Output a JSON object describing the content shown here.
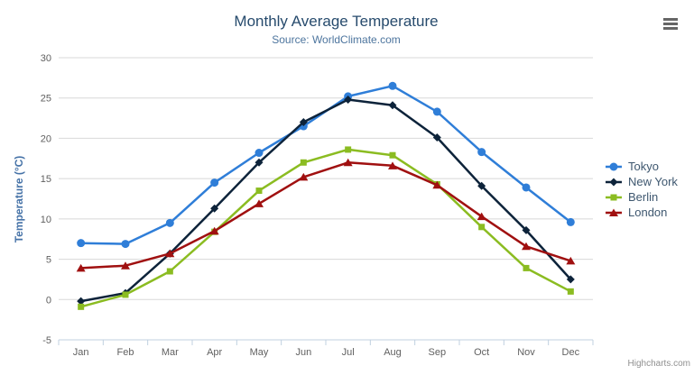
{
  "chart_data": {
    "type": "line",
    "title": "Monthly Average Temperature",
    "subtitle": "Source: WorldClimate.com",
    "categories": [
      "Jan",
      "Feb",
      "Mar",
      "Apr",
      "May",
      "Jun",
      "Jul",
      "Aug",
      "Sep",
      "Oct",
      "Nov",
      "Dec"
    ],
    "series": [
      {
        "name": "Tokyo",
        "color": "#2f7ed8",
        "marker": "circle",
        "values": [
          7.0,
          6.9,
          9.5,
          14.5,
          18.2,
          21.5,
          25.2,
          26.5,
          23.3,
          18.3,
          13.9,
          9.6
        ]
      },
      {
        "name": "New York",
        "color": "#0d233a",
        "marker": "diamond",
        "values": [
          -0.2,
          0.8,
          5.7,
          11.3,
          17.0,
          22.0,
          24.8,
          24.1,
          20.1,
          14.1,
          8.6,
          2.5
        ]
      },
      {
        "name": "Berlin",
        "color": "#8bbc21",
        "marker": "square",
        "values": [
          -0.9,
          0.6,
          3.5,
          8.4,
          13.5,
          17.0,
          18.6,
          17.9,
          14.3,
          9.0,
          3.9,
          1.0
        ]
      },
      {
        "name": "London",
        "color": "#a01010",
        "marker": "triangle",
        "values": [
          3.9,
          4.2,
          5.7,
          8.5,
          11.9,
          15.2,
          17.0,
          16.6,
          14.2,
          10.3,
          6.6,
          4.8
        ]
      }
    ],
    "xlabel": "",
    "ylabel": "Temperature (°C)",
    "ylim": [
      -5,
      30
    ],
    "yticks": [
      -5,
      0,
      5,
      10,
      15,
      20,
      25,
      30
    ],
    "grid": true,
    "legend_position": "right"
  },
  "styles": {
    "title_color": "#274b6d",
    "subtitle_color": "#4d759e",
    "axis_label_color": "#606060",
    "axis_title_color": "#4572a7",
    "legend_text_color": "#3e576f",
    "grid_color": "#d8d8d8",
    "axis_line_color": "#c0d0e0",
    "background": "#ffffff",
    "menu_icon_color": "#666666",
    "credits_color": "#909090"
  },
  "credits": {
    "label": "Highcharts.com"
  }
}
